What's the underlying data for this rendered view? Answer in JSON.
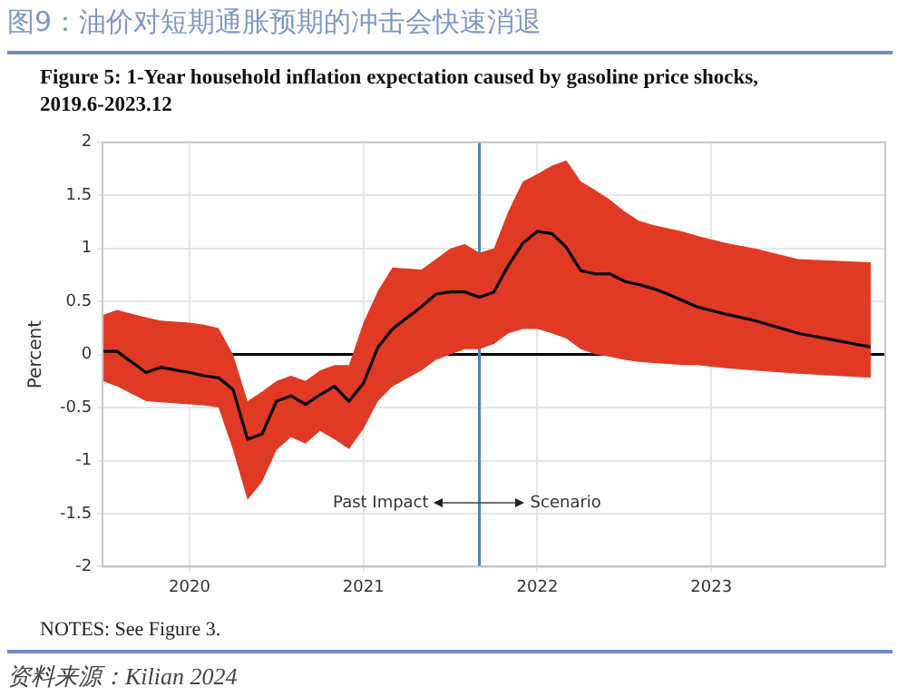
{
  "chart_data": {
    "type": "line",
    "title": "图9：油价对短期通胀预期的冲击会快速消退",
    "subtitle": "Figure 5: 1-Year household inflation expectation caused by gasoline price shocks, 2019.6-2023.12",
    "ylabel": "Percent",
    "x": [
      "2019-07",
      "2019-08",
      "2019-10",
      "2019-11",
      "2020-01",
      "2020-02",
      "2020-03",
      "2020-04",
      "2020-05",
      "2020-06",
      "2020-07",
      "2020-08",
      "2020-09",
      "2020-10",
      "2020-11",
      "2020-12",
      "2021-01",
      "2021-02",
      "2021-03",
      "2021-05",
      "2021-06",
      "2021-07",
      "2021-08",
      "2021-09",
      "2021-10",
      "2021-11",
      "2021-12",
      "2022-01",
      "2022-02",
      "2022-03",
      "2022-04",
      "2022-05",
      "2022-06",
      "2022-07",
      "2022-08",
      "2022-09",
      "2022-10",
      "2022-11",
      "2022-12",
      "2023-02",
      "2023-04",
      "2023-07",
      "2023-12"
    ],
    "series": [
      {
        "color": "#000000",
        "values": [
          0.03,
          0.03,
          -0.17,
          -0.12,
          -0.17,
          -0.2,
          -0.22,
          -0.33,
          -0.8,
          -0.75,
          -0.44,
          -0.39,
          -0.47,
          -0.38,
          -0.3,
          -0.44,
          -0.27,
          0.07,
          0.24,
          0.45,
          0.57,
          0.59,
          0.59,
          0.54,
          0.59,
          0.84,
          1.05,
          1.16,
          1.14,
          1.01,
          0.79,
          0.76,
          0.76,
          0.69,
          0.66,
          0.62,
          0.57,
          0.51,
          0.45,
          0.38,
          0.32,
          0.2,
          0.07
        ],
        "upper": [
          0.37,
          0.42,
          0.35,
          0.32,
          0.3,
          0.28,
          0.25,
          0.0,
          -0.44,
          -0.35,
          -0.25,
          -0.2,
          -0.25,
          -0.15,
          -0.1,
          -0.1,
          0.3,
          0.6,
          0.82,
          0.8,
          0.9,
          1.0,
          1.04,
          0.96,
          1.0,
          1.35,
          1.63,
          1.7,
          1.78,
          1.83,
          1.63,
          1.55,
          1.46,
          1.35,
          1.26,
          1.22,
          1.19,
          1.16,
          1.12,
          1.05,
          1.0,
          0.9,
          0.87
        ],
        "lower": [
          -0.25,
          -0.3,
          -0.44,
          -0.45,
          -0.47,
          -0.48,
          -0.5,
          -0.9,
          -1.37,
          -1.2,
          -0.9,
          -0.78,
          -0.84,
          -0.72,
          -0.8,
          -0.89,
          -0.7,
          -0.44,
          -0.3,
          -0.15,
          -0.05,
          0.0,
          0.05,
          0.05,
          0.1,
          0.2,
          0.24,
          0.24,
          0.2,
          0.15,
          0.05,
          0.0,
          -0.02,
          -0.05,
          -0.07,
          -0.08,
          -0.09,
          -0.1,
          -0.1,
          -0.13,
          -0.15,
          -0.18,
          -0.22
        ]
      }
    ],
    "xlim": [
      "2019-07",
      "2024-01"
    ],
    "xticks": [
      {
        "value": "2020-01",
        "label": "2020"
      },
      {
        "value": "2021-01",
        "label": "2021"
      },
      {
        "value": "2022-01",
        "label": "2022"
      },
      {
        "value": "2023-01",
        "label": "2023"
      }
    ],
    "ylim": [
      -2,
      2
    ],
    "yticks": [
      -2,
      -1.5,
      -1,
      -0.5,
      0,
      0.5,
      1,
      1.5,
      2
    ],
    "grid": true,
    "legend": false,
    "marker": "none",
    "line_style": "solid",
    "ref_lines": [
      {
        "axis": "y",
        "value": 0,
        "color": "#000000"
      },
      {
        "axis": "x",
        "value": "2021-09",
        "color": "#4a7fc4"
      }
    ],
    "annotations": [
      "Past Impact",
      "Scenario",
      "NOTES: See Figure 3.",
      "资料来源：Kilian 2024"
    ]
  }
}
